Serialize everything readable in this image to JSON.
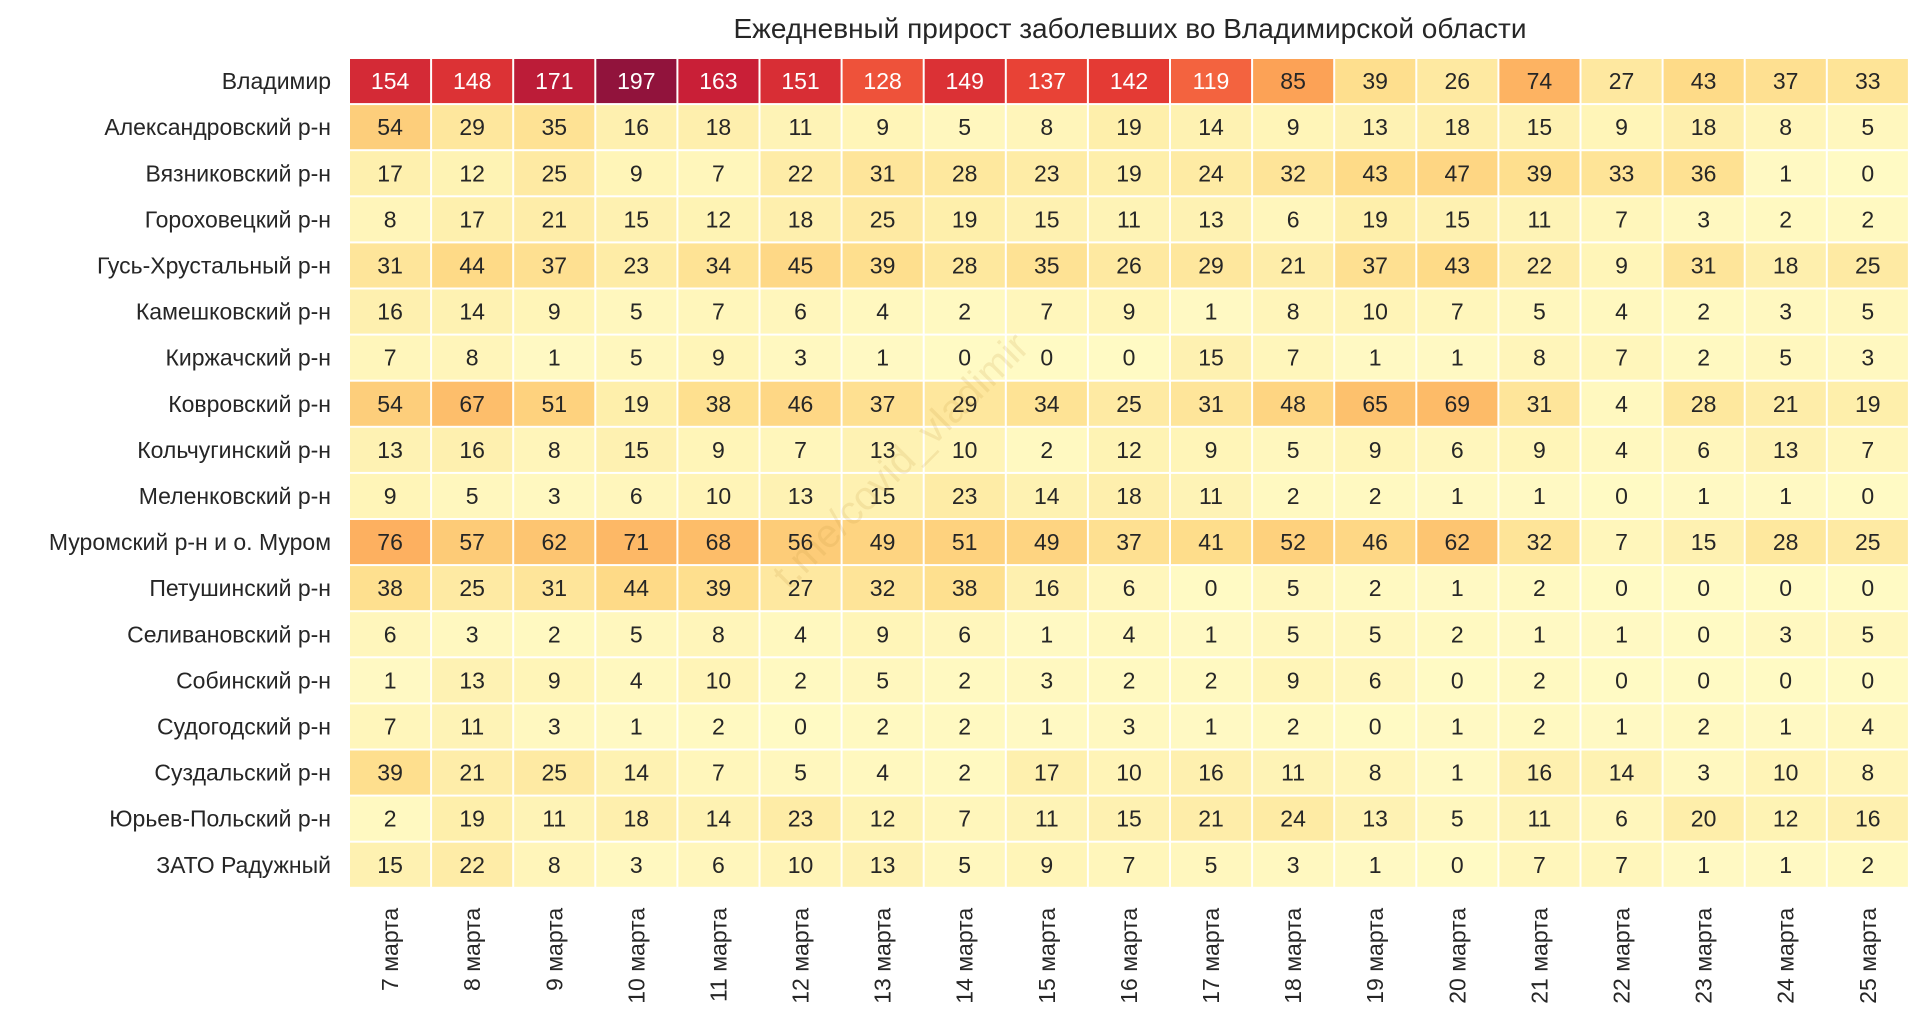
{
  "chart_data": {
    "type": "heatmap",
    "title": "Ежедневный прирост заболевших во Владимирской области",
    "xlabel": "",
    "ylabel": "",
    "columns": [
      "7 марта",
      "8 марта",
      "9 марта",
      "10 марта",
      "11 марта",
      "12 марта",
      "13 марта",
      "14 марта",
      "15 марта",
      "16 марта",
      "17 марта",
      "18 марта",
      "19 марта",
      "20 марта",
      "21 марта",
      "22 марта",
      "23 марта",
      "24 марта",
      "25 марта"
    ],
    "rows": [
      "Владимир",
      "Александровский р-н",
      "Вязниковский р-н",
      "Гороховецкий р-н",
      "Гусь-Хрустальный р-н",
      "Камешковский р-н",
      "Киржачский р-н",
      "Ковровский р-н",
      "Кольчугинский р-н",
      "Меленковский р-н",
      "Муромский р-н и о. Муром",
      "Петушинский р-н",
      "Селивановский р-н",
      "Собинский р-н",
      "Судогодский р-н",
      "Суздальский р-н",
      "Юрьев-Польский р-н",
      "ЗАТО Радужный"
    ],
    "values": [
      [
        154,
        148,
        171,
        197,
        163,
        151,
        128,
        149,
        137,
        142,
        119,
        85,
        39,
        26,
        74,
        27,
        43,
        37,
        33
      ],
      [
        54,
        29,
        35,
        16,
        18,
        11,
        9,
        5,
        8,
        19,
        14,
        9,
        13,
        18,
        15,
        9,
        18,
        8,
        5
      ],
      [
        17,
        12,
        25,
        9,
        7,
        22,
        31,
        28,
        23,
        19,
        24,
        32,
        43,
        47,
        39,
        33,
        36,
        1,
        0
      ],
      [
        8,
        17,
        21,
        15,
        12,
        18,
        25,
        19,
        15,
        11,
        13,
        6,
        19,
        15,
        11,
        7,
        3,
        2,
        2
      ],
      [
        31,
        44,
        37,
        23,
        34,
        45,
        39,
        28,
        35,
        26,
        29,
        21,
        37,
        43,
        22,
        9,
        31,
        18,
        25
      ],
      [
        16,
        14,
        9,
        5,
        7,
        6,
        4,
        2,
        7,
        9,
        1,
        8,
        10,
        7,
        5,
        4,
        2,
        3,
        5
      ],
      [
        7,
        8,
        1,
        5,
        9,
        3,
        1,
        0,
        0,
        0,
        15,
        7,
        1,
        1,
        8,
        7,
        2,
        5,
        3
      ],
      [
        54,
        67,
        51,
        19,
        38,
        46,
        37,
        29,
        34,
        25,
        31,
        48,
        65,
        69,
        31,
        4,
        28,
        21,
        19
      ],
      [
        13,
        16,
        8,
        15,
        9,
        7,
        13,
        10,
        2,
        12,
        9,
        5,
        9,
        6,
        9,
        4,
        6,
        13,
        7
      ],
      [
        9,
        5,
        3,
        6,
        10,
        13,
        15,
        23,
        14,
        18,
        11,
        2,
        2,
        1,
        1,
        0,
        1,
        1,
        0
      ],
      [
        76,
        57,
        62,
        71,
        68,
        56,
        49,
        51,
        49,
        37,
        41,
        52,
        46,
        62,
        32,
        7,
        15,
        28,
        25
      ],
      [
        38,
        25,
        31,
        44,
        39,
        27,
        32,
        38,
        16,
        6,
        0,
        5,
        2,
        1,
        2,
        0,
        0,
        0,
        0
      ],
      [
        6,
        3,
        2,
        5,
        8,
        4,
        9,
        6,
        1,
        4,
        1,
        5,
        5,
        2,
        1,
        1,
        0,
        3,
        5
      ],
      [
        1,
        13,
        9,
        4,
        10,
        2,
        5,
        2,
        3,
        2,
        2,
        9,
        6,
        0,
        2,
        0,
        0,
        0,
        0
      ],
      [
        7,
        11,
        3,
        1,
        2,
        0,
        2,
        2,
        1,
        3,
        1,
        2,
        0,
        1,
        2,
        1,
        2,
        1,
        4
      ],
      [
        39,
        21,
        25,
        14,
        7,
        5,
        4,
        2,
        17,
        10,
        16,
        11,
        8,
        1,
        16,
        14,
        3,
        10,
        8
      ],
      [
        2,
        19,
        11,
        18,
        14,
        23,
        12,
        7,
        11,
        15,
        21,
        24,
        13,
        5,
        11,
        6,
        20,
        12,
        16
      ],
      [
        15,
        22,
        8,
        3,
        6,
        10,
        13,
        5,
        9,
        7,
        5,
        3,
        1,
        0,
        7,
        7,
        1,
        1,
        2
      ]
    ],
    "colormap": "YlOrRd",
    "value_range": [
      0,
      200
    ],
    "grid": false,
    "legend": "none",
    "watermark": "t.me/covid_vladimir"
  }
}
